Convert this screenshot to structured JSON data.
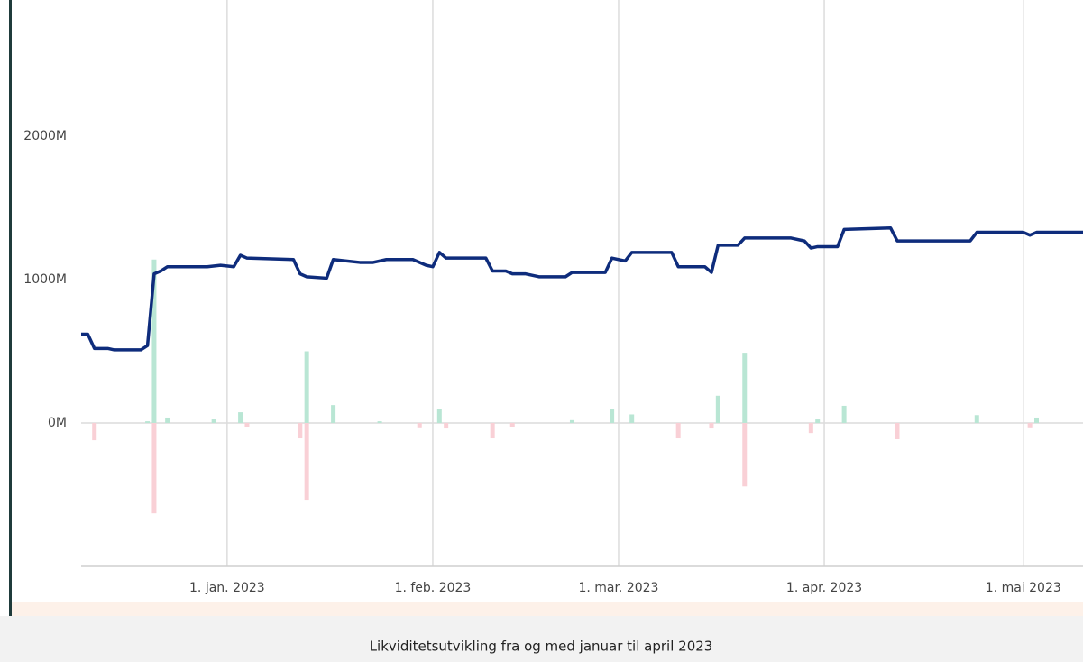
{
  "chart_data": {
    "type": "combo",
    "caption": "Likviditetsutvikling fra og med januar til april 2023",
    "xlim": [
      -22,
      129
    ],
    "xticks": [
      {
        "value": 0,
        "label": "1. jan. 2023"
      },
      {
        "value": 31,
        "label": "1. feb. 2023"
      },
      {
        "value": 59,
        "label": "1. mar. 2023"
      },
      {
        "value": 90,
        "label": "1. apr. 2023"
      },
      {
        "value": 120,
        "label": "1. mai 2023"
      }
    ],
    "ylim": [
      -1000,
      2950
    ],
    "yticks": [
      {
        "value": 0,
        "label": "0M"
      },
      {
        "value": 1000,
        "label": "1000M"
      },
      {
        "value": 2000,
        "label": "2000M"
      }
    ],
    "grid": true,
    "series": [
      {
        "type": "bar",
        "color": "#b9e6d4",
        "x": [
          -12,
          -11,
          -9,
          -2,
          2,
          12,
          16,
          23,
          32,
          52,
          58,
          61,
          74,
          78,
          89,
          93,
          113,
          122
        ],
        "values": [
          12,
          1140,
          38,
          25,
          75,
          500,
          125,
          12,
          95,
          20,
          100,
          60,
          190,
          490,
          25,
          120,
          55,
          38
        ]
      },
      {
        "type": "bar",
        "color": "#f9d0d6",
        "x": [
          -20,
          -11,
          3,
          11,
          12,
          29,
          33,
          40,
          43,
          68,
          73,
          78,
          88,
          101,
          121
        ],
        "values": [
          -120,
          -630,
          -25,
          -107,
          -535,
          -30,
          -38,
          -107,
          -25,
          -107,
          -38,
          -442,
          -70,
          -113,
          -30
        ]
      },
      {
        "type": "line",
        "color": "#0e2c7c",
        "x": [
          -22,
          -21,
          -20,
          -18,
          -17,
          -13,
          -12,
          -11,
          -10,
          -9,
          -3,
          -1,
          1,
          2,
          3,
          10,
          11,
          12,
          15,
          16,
          20,
          22,
          24,
          28,
          30,
          31,
          32,
          33,
          39,
          40,
          42,
          43,
          45,
          47,
          51,
          52,
          57,
          58,
          60,
          61,
          67,
          68,
          72,
          73,
          74,
          77,
          78,
          79,
          85,
          87,
          88,
          89,
          92,
          93,
          100,
          101,
          104,
          112,
          113,
          120,
          121,
          122,
          129
        ],
        "values": [
          620,
          620,
          520,
          520,
          510,
          510,
          540,
          1040,
          1060,
          1090,
          1090,
          1100,
          1090,
          1170,
          1150,
          1140,
          1040,
          1020,
          1010,
          1140,
          1120,
          1120,
          1140,
          1140,
          1100,
          1090,
          1190,
          1150,
          1150,
          1060,
          1060,
          1040,
          1040,
          1020,
          1020,
          1050,
          1050,
          1150,
          1130,
          1190,
          1190,
          1090,
          1090,
          1050,
          1240,
          1240,
          1290,
          1290,
          1290,
          1270,
          1220,
          1230,
          1230,
          1350,
          1360,
          1270,
          1270,
          1270,
          1330,
          1330,
          1310,
          1330,
          1330
        ]
      }
    ]
  }
}
